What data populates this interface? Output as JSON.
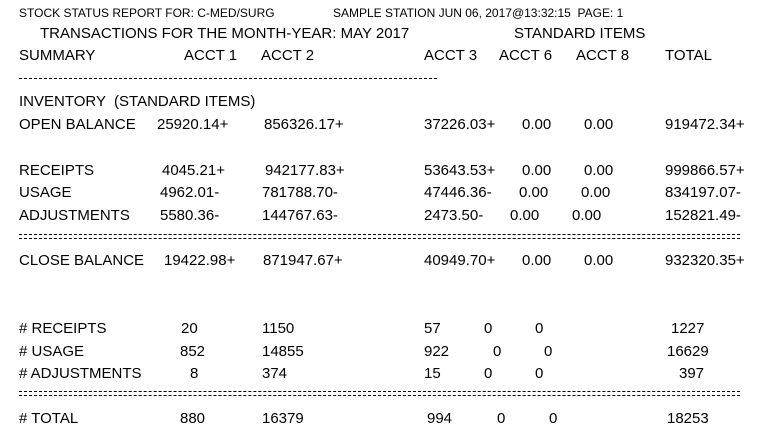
{
  "header": {
    "line1": "STOCK STATUS REPORT FOR: C-MED/SURG",
    "station": "SAMPLE STATION JUN 06, 2017@13:32:15  PAGE: 1",
    "transactions": "TRANSACTIONS FOR THE MONTH-YEAR: MAY 2017",
    "standard_items": "STANDARD ITEMS"
  },
  "columns": {
    "summary": "SUMMARY",
    "acct1": "ACCT 1",
    "acct2": "ACCT 2",
    "acct3": "ACCT 3",
    "acct6": "ACCT 6",
    "acct8": "ACCT 8",
    "total": "TOTAL"
  },
  "inventory_heading": "INVENTORY  (STANDARD ITEMS)",
  "rows": {
    "open_balance": {
      "label": "OPEN BALANCE",
      "acct1": "25920.14+",
      "acct2": "856326.17+",
      "acct3": "37226.03+",
      "acct6": "0.00",
      "acct8": "0.00",
      "total": "919472.34+"
    },
    "receipts": {
      "label": "RECEIPTS",
      "acct1": "4045.21+",
      "acct2": "942177.83+",
      "acct3": "53643.53+",
      "acct6": "0.00",
      "acct8": "0.00",
      "total": "999866.57+"
    },
    "usage": {
      "label": "USAGE",
      "acct1": "4962.01-",
      "acct2": "781788.70-",
      "acct3": "47446.36-",
      "acct6": "0.00",
      "acct8": "0.00",
      "total": "834197.07-"
    },
    "adjustments": {
      "label": "ADJUSTMENTS",
      "acct1": "5580.36-",
      "acct2": "144767.63-",
      "acct3": "2473.50-",
      "acct6": "0.00",
      "acct8": "0.00",
      "total": "152821.49-"
    },
    "close_balance": {
      "label": "CLOSE BALANCE",
      "acct1": "19422.98+",
      "acct2": "871947.67+",
      "acct3": "40949.70+",
      "acct6": "0.00",
      "acct8": "0.00",
      "total": "932320.35+"
    },
    "n_receipts": {
      "label": "# RECEIPTS",
      "acct1": "20",
      "acct2": "1150",
      "acct3": "57",
      "acct6": "0",
      "acct8": "0",
      "total": "1227"
    },
    "n_usage": {
      "label": "# USAGE",
      "acct1": "852",
      "acct2": "14855",
      "acct3": "922",
      "acct6": "0",
      "acct8": "0",
      "total": "16629"
    },
    "n_adjustments": {
      "label": "# ADJUSTMENTS",
      "acct1": "8",
      "acct2": "374",
      "acct3": "15",
      "acct6": "0",
      "acct8": "0",
      "total": "397"
    },
    "n_total": {
      "label": "# TOTAL",
      "acct1": "880",
      "acct2": "16379",
      "acct3": "994",
      "acct6": "0",
      "acct8": "0",
      "total": "18253"
    }
  }
}
